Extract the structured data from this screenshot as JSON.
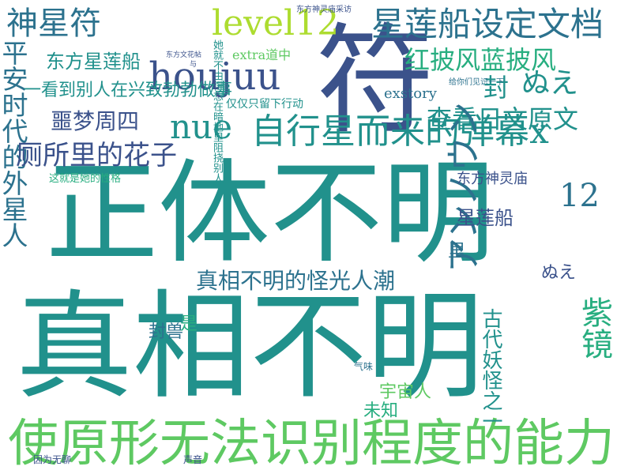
{
  "palette": {
    "dark_purple": "#440154",
    "indigo": "#3b528b",
    "teal_blue": "#2c728e",
    "teal": "#21918c",
    "green": "#28ae80",
    "light_green": "#5ec962",
    "lime": "#addc30",
    "yellow": "#fde725"
  },
  "words": [
    "真相不明",
    "正体不明",
    "符",
    "使原形无法识别程度的能力",
    "平安时代的外星人",
    "houjuu",
    "自行星而来的弹幕x",
    "nue",
    "星莲船设定文档",
    "神星符",
    "level12",
    "厕所里的花子",
    "红披风蓝披风",
    "查看日文原文",
    "アンノウン",
    "真相不明的怪光人潮",
    "噩梦周四",
    "东方星莲船",
    "紫镜",
    "12",
    "ぬえ",
    "一看到别人在兴致勃勃做事",
    "东方神灵庙",
    "星莲船",
    "古代妖怪之一",
    "宇宙人",
    "未知",
    "封兽",
    "封",
    "extra道中",
    "exstory",
    "仅仅只留下行动",
    "她就不由得想在暗地里阻挠别人",
    "这就是她的性格",
    "东方文花帖",
    "东方神灵庙采访",
    "给你们见识一下",
    "因为无聊",
    "声音",
    "气味",
    "里",
    "ぬえ",
    "是",
    "与"
  ]
}
